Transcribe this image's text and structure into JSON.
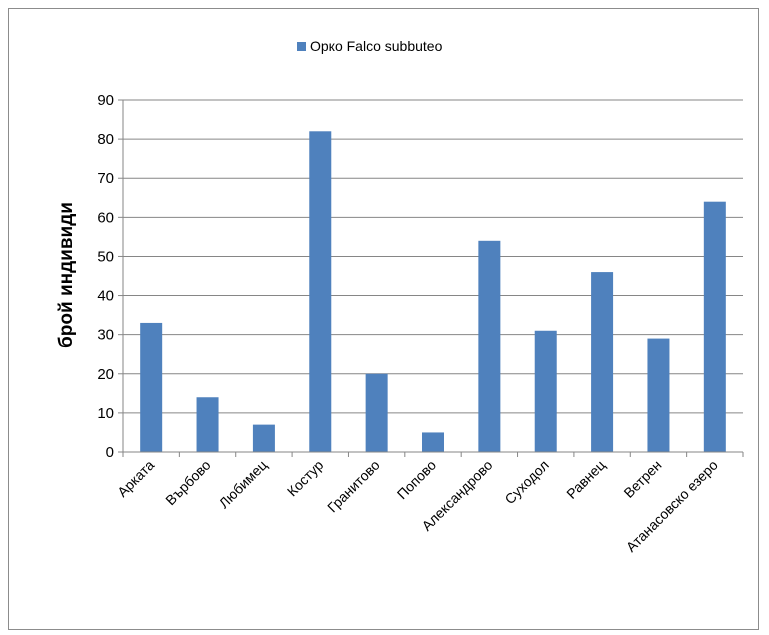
{
  "chart_data": {
    "type": "bar",
    "title": "",
    "xlabel": "",
    "ylabel": "брой индивиди",
    "ylim": [
      0,
      90
    ],
    "yticks": [
      0,
      10,
      20,
      30,
      40,
      50,
      60,
      70,
      80,
      90
    ],
    "grid": true,
    "legend_position": "top",
    "categories": [
      "Арката",
      "Върбово",
      "Любимец",
      "Костур",
      "Гранитово",
      "Попово",
      "Александрово",
      "Суходол",
      "Равнец",
      "Ветрен",
      "Атанасовско езеро"
    ],
    "series": [
      {
        "name": "Орко Falco subbuteo",
        "color": "#4f81bd",
        "values": [
          33,
          14,
          7,
          82,
          20,
          5,
          54,
          31,
          46,
          29,
          64
        ]
      }
    ]
  }
}
